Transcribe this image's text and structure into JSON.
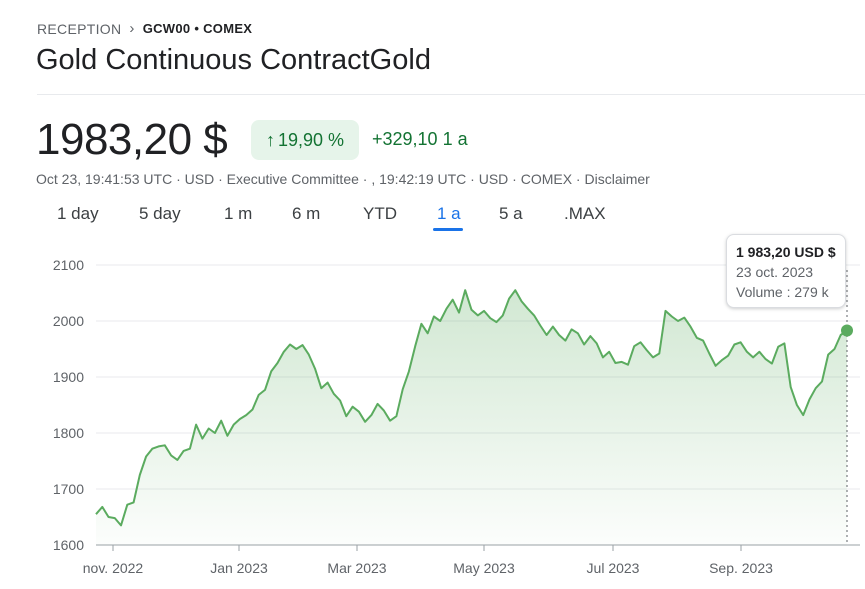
{
  "breadcrumb": {
    "home": "RECEPTION",
    "ticker": "GCW00 • COMEX"
  },
  "page_title": "Gold Continuous ContractGold",
  "quote": {
    "price": "1983,20 $",
    "change_pct": "19,90 %",
    "change_abs": "+329,10 1 a",
    "meta": "Oct 23, 19:41:53 UTC · USD · Executive Committee · , 19:42:19 UTC · USD · COMEX · Disclaimer"
  },
  "tabs": [
    "1 day",
    "5 day",
    "1 m",
    "6 m",
    "YTD",
    "1 a",
    "5 a",
    ".MAX"
  ],
  "active_tab": "1 a",
  "tooltip": {
    "value": "1 983,20 USD $",
    "date": "23 oct. 2023",
    "volume": "Volume : 279 k"
  },
  "colors": {
    "positive": "#137333",
    "line": "#5bab5f",
    "accent": "#1a73e8"
  },
  "chart_data": {
    "type": "area",
    "title": "",
    "xlabel": "",
    "ylabel": "",
    "ylim": [
      1600,
      2100
    ],
    "y_ticks": [
      1600,
      1700,
      1800,
      1900,
      2000,
      2100
    ],
    "x_ticks": [
      "nov. 2022",
      "Jan 2023",
      "Mar 2023",
      "May 2023",
      "Jul 2023",
      "Sep. 2023"
    ],
    "grid": true,
    "series": [
      {
        "values": [
          1655,
          1668,
          1650,
          1648,
          1635,
          1672,
          1676,
          1725,
          1758,
          1772,
          1776,
          1778,
          1760,
          1752,
          1768,
          1772,
          1815,
          1790,
          1808,
          1800,
          1822,
          1795,
          1815,
          1825,
          1832,
          1842,
          1868,
          1877,
          1910,
          1925,
          1945,
          1958,
          1950,
          1957,
          1940,
          1915,
          1880,
          1890,
          1870,
          1858,
          1830,
          1847,
          1838,
          1820,
          1832,
          1852,
          1840,
          1822,
          1830,
          1878,
          1910,
          1955,
          1995,
          1978,
          2008,
          2000,
          2022,
          2038,
          2015,
          2055,
          2020,
          2010,
          2018,
          2005,
          1998,
          2010,
          2040,
          2055,
          2035,
          2022,
          2010,
          1992,
          1975,
          1990,
          1975,
          1965,
          1985,
          1978,
          1958,
          1973,
          1960,
          1935,
          1945,
          1925,
          1927,
          1922,
          1955,
          1962,
          1948,
          1935,
          1942,
          2018,
          2008,
          2000,
          2006,
          1990,
          1970,
          1965,
          1942,
          1920,
          1930,
          1938,
          1958,
          1962,
          1945,
          1935,
          1945,
          1932,
          1924,
          1954,
          1960,
          1882,
          1850,
          1832,
          1860,
          1880,
          1892,
          1940,
          1950,
          1975,
          1983
        ]
      }
    ]
  }
}
